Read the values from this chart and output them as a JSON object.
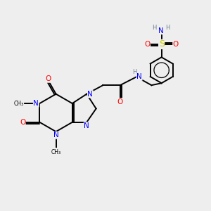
{
  "bg_color": "#eeeeee",
  "atom_colors": {
    "C": "#000000",
    "N": "#0000ff",
    "O": "#ff0000",
    "S": "#cccc00",
    "H": "#708090"
  },
  "bond_color": "#000000"
}
